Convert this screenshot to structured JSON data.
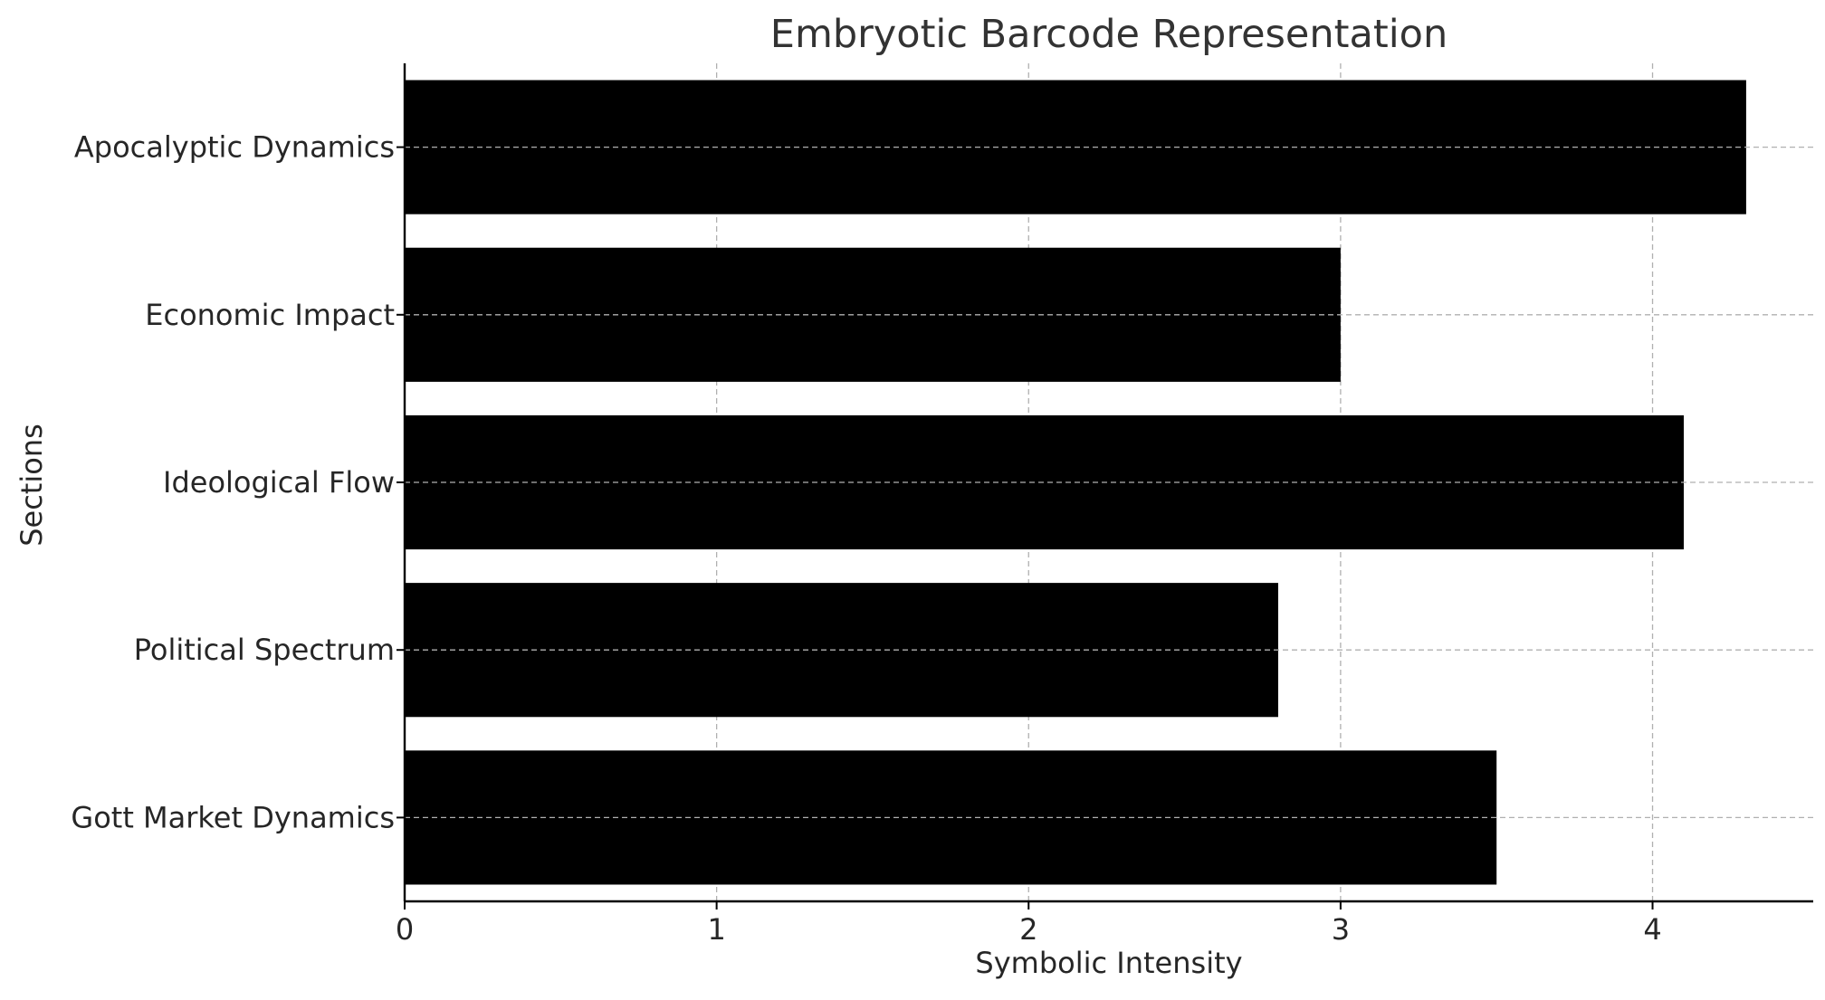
{
  "chart_data": {
    "type": "bar",
    "orientation": "horizontal",
    "title": "Embryotic Barcode Representation",
    "xlabel": "Symbolic Intensity",
    "ylabel": "Sections",
    "categories": [
      "Gott Market Dynamics",
      "Political Spectrum",
      "Ideological Flow",
      "Economic Impact",
      "Apocalyptic Dynamics"
    ],
    "values": [
      3.5,
      2.8,
      4.1,
      3.0,
      4.3
    ],
    "xlim": [
      0,
      4.515
    ],
    "xticks": [
      0,
      1,
      2,
      3,
      4
    ],
    "grid": true,
    "bar_color": "#000000",
    "grid_color": "#b0b0b0",
    "axis_color": "#000000",
    "text_color": "#262626",
    "title_color": "#333333"
  }
}
